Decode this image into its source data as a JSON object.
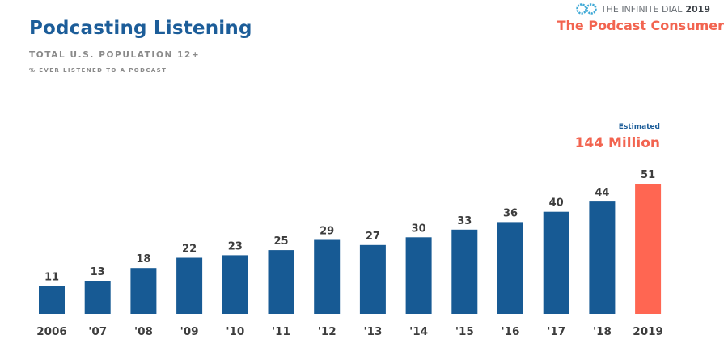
{
  "header": {
    "title": "Podcasting Listening",
    "subtitle": "TOTAL U.S. POPULATION 12+",
    "note": "% EVER LISTENED TO A PODCAST"
  },
  "brand": {
    "logo_icon": "infinity-icon",
    "name": "THE INFINITE DIAL",
    "year": "2019",
    "report_title": "The Podcast Consumer"
  },
  "colors": {
    "bar": "#175a94",
    "highlight": "#ff6652",
    "title": "#1c5d99",
    "accent": "#f26450"
  },
  "chart_data": {
    "type": "bar",
    "title": "Podcasting Listening",
    "categories": [
      "2006",
      "'07",
      "'08",
      "'09",
      "'10",
      "'11",
      "'12",
      "'13",
      "'14",
      "'15",
      "'16",
      "'17",
      "'18",
      "2019"
    ],
    "values": [
      11,
      13,
      18,
      22,
      23,
      25,
      29,
      27,
      30,
      33,
      36,
      40,
      44,
      51
    ],
    "highlight_index": 13,
    "annotation": {
      "small": "Estimated",
      "big": "144 Million"
    },
    "ylim": [
      0,
      51
    ],
    "grid": false,
    "legend": "none"
  }
}
